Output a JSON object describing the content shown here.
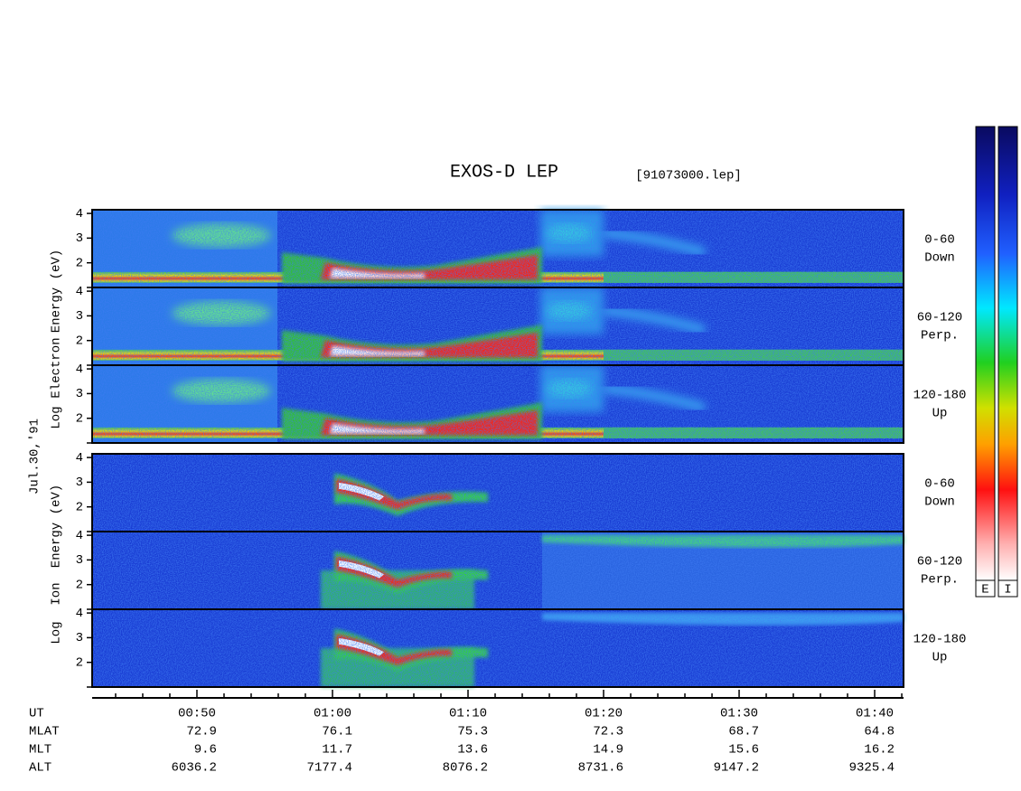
{
  "chart_data": {
    "type": "spectrogram",
    "title": "EXOS-D LEP",
    "file": "[91073000.lep]",
    "date": "Jul.30,'91",
    "xlim": [
      42.27,
      102.13
    ],
    "xticks": [
      {
        "value": 50,
        "label": "00:50"
      },
      {
        "value": 60,
        "label": "01:00"
      },
      {
        "value": 70,
        "label": "01:10"
      },
      {
        "value": 80,
        "label": "01:20"
      },
      {
        "value": 90,
        "label": "01:30"
      },
      {
        "value": 100,
        "label": "01:40"
      }
    ],
    "xminorticks": [
      44,
      46,
      48,
      52,
      54,
      56,
      58,
      62,
      64,
      66,
      68,
      72,
      74,
      76,
      78,
      82,
      84,
      86,
      88,
      92,
      94,
      96,
      98,
      102
    ],
    "ylim": [
      1,
      4.15
    ],
    "yticks": [
      2,
      3,
      4
    ],
    "groups": [
      {
        "ylabel": [
          "Log",
          "Electron",
          "Energy (eV)"
        ],
        "panels": [
          [
            "0-60",
            "Down"
          ],
          [
            "60-120",
            "Perp."
          ],
          [
            "120-180",
            "Up"
          ]
        ]
      },
      {
        "ylabel": [
          "Log",
          "Ion",
          "Energy (eV)"
        ],
        "panels": [
          [
            "0-60",
            "Down"
          ],
          [
            "60-120",
            "Perp."
          ],
          [
            "120-180",
            "Up"
          ]
        ]
      }
    ],
    "orbit": {
      "labels": [
        "UT",
        "MLAT",
        "MLT",
        "ALT"
      ],
      "rows": [
        [
          72.9,
          76.1,
          75.3,
          72.3,
          68.7,
          64.8
        ],
        [
          9.6,
          11.7,
          13.6,
          14.9,
          15.6,
          16.2
        ],
        [
          6036.2,
          7177.4,
          8076.2,
          8731.6,
          9147.2,
          9325.4
        ]
      ]
    },
    "colorbars": [
      "E",
      "I"
    ]
  }
}
